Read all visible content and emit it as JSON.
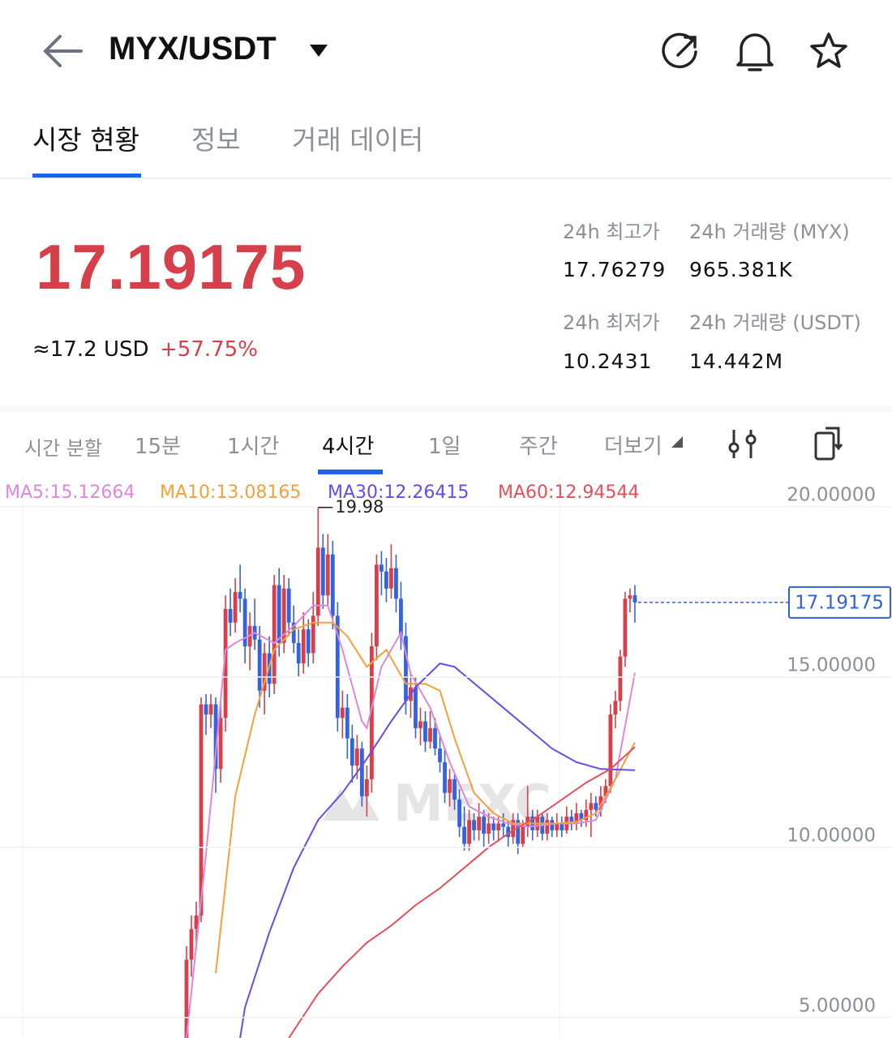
{
  "header": {
    "title": "MYX/USDT"
  },
  "tabs": [
    "시장 현황",
    "정보",
    "거래 데이터"
  ],
  "ticker": {
    "price": "17.19175",
    "usd": "≈17.2 USD",
    "change": "+57.75%",
    "stats": [
      {
        "label": "24h 최고가",
        "value": "17.76279"
      },
      {
        "label": "24h 거래량 (MYX)",
        "value": "965.381K"
      },
      {
        "label": "24h 최저가",
        "value": "10.2431"
      },
      {
        "label": "24h 거래량 (USDT)",
        "value": "14.442M"
      }
    ]
  },
  "intervals": [
    "시간 분할",
    "15분",
    "1시간",
    "4시간",
    "1일",
    "주간",
    "더보기"
  ],
  "watermark": "MEXC",
  "chart_data": {
    "type": "candlestick",
    "up_color": "#d6404a",
    "down_color": "#3563dc",
    "grid": true,
    "ylim": [
      4.4,
      20.88
    ],
    "yticks": [
      {
        "value": 5,
        "label": "5.00000"
      },
      {
        "value": 10,
        "label": "10.00000"
      },
      {
        "value": 15,
        "label": "15.00000"
      },
      {
        "value": 20,
        "label": "20.00000"
      }
    ],
    "ohlc": [
      [
        4.2,
        7.1,
        4.0,
        6.7
      ],
      [
        6.7,
        8.0,
        6.2,
        7.6
      ],
      [
        7.6,
        8.4,
        7.0,
        8.0
      ],
      [
        8.0,
        14.4,
        7.8,
        14.2
      ],
      [
        14.2,
        14.5,
        13.3,
        13.9
      ],
      [
        13.9,
        14.5,
        13.5,
        14.2
      ],
      [
        14.2,
        14.4,
        11.6,
        12.3
      ],
      [
        12.3,
        14.3,
        11.9,
        13.8
      ],
      [
        13.8,
        17.4,
        13.4,
        17.0
      ],
      [
        17.0,
        17.6,
        16.2,
        16.6
      ],
      [
        16.6,
        17.9,
        16.3,
        17.5
      ],
      [
        17.5,
        18.3,
        16.9,
        17.3
      ],
      [
        17.3,
        17.6,
        15.4,
        15.9
      ],
      [
        15.9,
        16.9,
        15.2,
        16.5
      ],
      [
        16.5,
        17.3,
        15.8,
        16.1
      ],
      [
        16.1,
        16.5,
        14.1,
        14.6
      ],
      [
        14.6,
        16.0,
        13.9,
        15.7
      ],
      [
        15.7,
        16.2,
        14.4,
        14.8
      ],
      [
        14.8,
        18.0,
        14.5,
        17.7
      ],
      [
        17.7,
        18.2,
        15.6,
        16.0
      ],
      [
        16.0,
        18.0,
        15.7,
        17.6
      ],
      [
        17.6,
        17.9,
        16.2,
        16.6
      ],
      [
        16.6,
        17.1,
        15.7,
        16.0
      ],
      [
        16.0,
        16.4,
        15.0,
        15.4
      ],
      [
        15.4,
        16.9,
        15.1,
        16.4
      ],
      [
        16.4,
        16.7,
        15.3,
        15.7
      ],
      [
        15.7,
        17.5,
        15.4,
        16.8
      ],
      [
        16.8,
        19.98,
        16.5,
        18.8
      ],
      [
        18.8,
        19.2,
        17.0,
        17.4
      ],
      [
        17.4,
        19.2,
        17.1,
        18.6
      ],
      [
        18.6,
        19.0,
        16.4,
        16.8
      ],
      [
        16.8,
        17.2,
        13.4,
        13.8
      ],
      [
        13.8,
        14.6,
        13.2,
        14.1
      ],
      [
        14.1,
        14.5,
        12.6,
        13.2
      ],
      [
        13.2,
        13.6,
        11.9,
        12.4
      ],
      [
        12.4,
        13.3,
        12.0,
        12.9
      ],
      [
        12.9,
        13.1,
        11.2,
        11.5
      ],
      [
        11.5,
        12.4,
        10.9,
        12.0
      ],
      [
        12.0,
        16.3,
        11.6,
        15.9
      ],
      [
        15.9,
        18.6,
        15.5,
        18.3
      ],
      [
        18.3,
        18.7,
        17.4,
        18.1
      ],
      [
        18.1,
        18.5,
        17.2,
        17.6
      ],
      [
        17.6,
        18.9,
        17.3,
        18.2
      ],
      [
        18.2,
        18.6,
        16.9,
        17.3
      ],
      [
        17.3,
        17.8,
        15.8,
        16.2
      ],
      [
        16.2,
        16.6,
        13.9,
        14.3
      ],
      [
        14.3,
        15.1,
        13.8,
        14.7
      ],
      [
        14.7,
        15.0,
        13.2,
        13.5
      ],
      [
        13.5,
        14.1,
        13.0,
        13.7
      ],
      [
        13.7,
        14.0,
        12.8,
        13.1
      ],
      [
        13.1,
        14.0,
        12.9,
        13.5
      ],
      [
        13.5,
        13.8,
        12.7,
        12.9
      ],
      [
        12.9,
        13.3,
        12.2,
        12.5
      ],
      [
        12.5,
        12.9,
        11.3,
        11.6
      ],
      [
        11.6,
        12.3,
        11.2,
        12.0
      ],
      [
        12.0,
        12.2,
        11.1,
        11.4
      ],
      [
        11.4,
        11.7,
        10.3,
        10.6
      ],
      [
        10.6,
        11.2,
        9.9,
        10.1
      ],
      [
        10.1,
        11.1,
        9.9,
        10.8
      ],
      [
        10.8,
        11.0,
        10.2,
        10.5
      ],
      [
        10.5,
        11.3,
        10.2,
        10.9
      ],
      [
        10.9,
        11.1,
        10.0,
        10.4
      ],
      [
        10.4,
        11.0,
        10.1,
        10.7
      ],
      [
        10.7,
        10.9,
        10.2,
        10.5
      ],
      [
        10.5,
        10.9,
        10.2,
        10.7
      ],
      [
        10.7,
        11.0,
        10.3,
        10.6
      ],
      [
        10.6,
        10.8,
        10.0,
        10.3
      ],
      [
        10.3,
        11.0,
        10.1,
        10.8
      ],
      [
        10.8,
        11.0,
        9.8,
        10.1
      ],
      [
        10.1,
        10.8,
        10.0,
        10.6
      ],
      [
        10.6,
        11.8,
        10.3,
        10.9
      ],
      [
        10.9,
        11.1,
        10.2,
        10.5
      ],
      [
        10.5,
        11.1,
        10.3,
        10.9
      ],
      [
        10.9,
        11.0,
        10.2,
        10.4
      ],
      [
        10.4,
        11.0,
        10.2,
        10.8
      ],
      [
        10.8,
        10.9,
        10.3,
        10.5
      ],
      [
        10.5,
        11.0,
        10.3,
        10.7
      ],
      [
        10.7,
        10.9,
        10.3,
        10.5
      ],
      [
        10.5,
        11.2,
        10.4,
        10.9
      ],
      [
        10.9,
        11.1,
        10.5,
        10.7
      ],
      [
        10.7,
        11.3,
        10.5,
        11.0
      ],
      [
        11.0,
        11.1,
        10.6,
        10.8
      ],
      [
        10.8,
        11.4,
        10.6,
        11.1
      ],
      [
        11.1,
        11.6,
        10.3,
        11.3
      ],
      [
        11.3,
        11.5,
        10.9,
        11.1
      ],
      [
        11.1,
        11.8,
        10.9,
        11.5
      ],
      [
        11.5,
        12.0,
        11.3,
        11.8
      ],
      [
        11.8,
        14.2,
        11.6,
        13.9
      ],
      [
        13.9,
        14.6,
        13.5,
        14.3
      ],
      [
        14.3,
        15.8,
        14.0,
        15.6
      ],
      [
        15.6,
        17.5,
        15.3,
        17.3
      ],
      [
        17.3,
        17.6,
        16.9,
        17.4
      ],
      [
        17.4,
        17.7,
        16.6,
        17.19175
      ]
    ],
    "series": [
      {
        "name": "MA5:15.12664",
        "color": "#dd88dd",
        "x": [
          0,
          4,
          8,
          10,
          14,
          18,
          22,
          26,
          29,
          32,
          36,
          37,
          40,
          44,
          46,
          50,
          54,
          58,
          62,
          66,
          70,
          76,
          80,
          84,
          88,
          92
        ],
        "values": [
          4.4,
          9.8,
          15.8,
          16.0,
          16.3,
          16.0,
          16.5,
          17.1,
          17.1,
          15.8,
          13.7,
          13.5,
          15.3,
          16.3,
          15.1,
          14.1,
          12.5,
          11.2,
          10.9,
          10.7,
          10.6,
          10.7,
          10.7,
          10.8,
          12.0,
          15.12664
        ]
      },
      {
        "name": "MA10:13.08165",
        "color": "#f5a03c",
        "x": [
          6,
          10,
          14,
          18,
          22,
          26,
          30,
          33,
          37,
          41,
          45,
          49,
          52,
          55,
          59,
          63,
          67,
          71,
          76,
          80,
          84,
          88,
          92
        ],
        "values": [
          6.3,
          11.5,
          13.9,
          15.8,
          16.4,
          16.6,
          16.6,
          16.2,
          15.3,
          15.8,
          14.8,
          14.8,
          14.6,
          13.2,
          11.6,
          11.0,
          10.7,
          10.7,
          10.7,
          10.75,
          11.0,
          12.0,
          13.08165
        ]
      },
      {
        "name": "MA30:12.26415",
        "color": "#6a4ae6",
        "x": [
          11,
          12,
          17,
          22,
          27,
          32,
          37,
          42,
          47,
          52,
          55,
          60,
          65,
          70,
          75,
          80,
          85,
          92
        ],
        "values": [
          4.4,
          5.3,
          7.5,
          9.4,
          10.8,
          11.6,
          12.6,
          13.7,
          14.7,
          15.4,
          15.3,
          14.7,
          14.1,
          13.5,
          12.9,
          12.5,
          12.3,
          12.26415
        ]
      },
      {
        "name": "MA60:12.94544",
        "color": "#e4505a",
        "x": [
          21,
          27,
          32,
          37,
          42,
          47,
          52,
          57,
          62,
          67,
          72,
          77,
          82,
          87,
          92
        ],
        "values": [
          4.4,
          5.7,
          6.5,
          7.2,
          7.7,
          8.3,
          8.8,
          9.4,
          10.0,
          10.5,
          10.9,
          11.4,
          11.9,
          12.3,
          12.94544
        ]
      }
    ]
  }
}
